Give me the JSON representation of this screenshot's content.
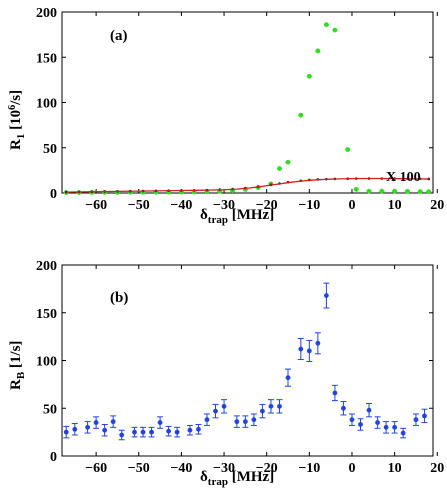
{
  "chart_data": [
    {
      "type": "scatter",
      "panel_label": "(a)",
      "xlabel": "δ",
      "xlabel_sub": "trap",
      "xlabel_unit": " [MHz]",
      "ylabel": "R",
      "ylabel_sub": "1",
      "ylabel_unit": " [10",
      "ylabel_sup": "6",
      "ylabel_end": "/s]",
      "xlim": [
        -68,
        19
      ],
      "ylim": [
        0,
        200
      ],
      "xticks": [
        -60,
        -50,
        -40,
        -30,
        -20,
        -10,
        0,
        10,
        20
      ],
      "yticks": [
        0,
        50,
        100,
        150,
        200
      ],
      "xtick_labels": [
        "−60",
        "−50",
        "−40",
        "−30",
        "−20",
        "−10",
        "0",
        "10",
        "20"
      ],
      "ytick_labels": [
        "0",
        "50",
        "100",
        "150",
        "200"
      ],
      "annotation": "X 100",
      "grid": false,
      "series": [
        {
          "color": "#33dd22",
          "marker": "circle",
          "x": [
            -67,
            -64,
            -61,
            -58,
            -55,
            -52,
            -49,
            -46,
            -43,
            -40,
            -37,
            -34,
            -31,
            -28,
            -25,
            -22,
            -19,
            -17,
            -15,
            -12,
            -10,
            -8,
            -6,
            -4,
            -1,
            1,
            4,
            7,
            10,
            13,
            16,
            18
          ],
          "y": [
            0.5,
            0.5,
            0.6,
            0.6,
            0.7,
            0.8,
            0.8,
            0.9,
            1,
            1,
            1.2,
            1.4,
            1.8,
            2.5,
            4,
            6,
            10,
            27,
            34,
            86,
            129,
            157,
            186,
            180,
            48,
            4,
            2,
            2,
            2,
            1.8,
            1.6,
            1.5
          ],
          "xerr": 0.6
        },
        {
          "color": "#222222",
          "marker": "dot",
          "x": [
            -67,
            -64,
            -61,
            -58,
            -55,
            -52,
            -49,
            -46,
            -43,
            -40,
            -37,
            -34,
            -31,
            -28,
            -25,
            -22,
            -19,
            -17,
            -15,
            -12,
            -10,
            -8,
            -6,
            -4,
            -1,
            1,
            4,
            7,
            10,
            13,
            16,
            18
          ],
          "y": [
            1,
            1.2,
            1.4,
            1.6,
            1.8,
            2,
            2.2,
            2.4,
            2.6,
            2.8,
            3,
            3.3,
            3.8,
            4.3,
            5.5,
            7,
            9,
            10.5,
            12,
            13.5,
            14.5,
            15,
            15.3,
            15.6,
            15.8,
            16,
            16,
            16,
            15.9,
            15.8,
            15.7,
            15.5
          ]
        },
        {
          "color": "#cc2222",
          "marker": "line",
          "x": [
            -67,
            -60,
            -50,
            -40,
            -35,
            -30,
            -27,
            -24,
            -21,
            -18,
            -15,
            -12,
            -9,
            -6,
            -3,
            0,
            3,
            6,
            9,
            12,
            15,
            18
          ],
          "y": [
            1.0,
            1.5,
            2.1,
            2.8,
            3.1,
            3.6,
            4.3,
            5.5,
            7.3,
            9.4,
            11.4,
            13.1,
            14.3,
            15.1,
            15.6,
            15.9,
            16,
            16,
            15.9,
            15.8,
            15.6,
            15.4
          ]
        }
      ]
    },
    {
      "type": "scatter",
      "panel_label": "(b)",
      "xlabel": "δ",
      "xlabel_sub": "trap",
      "xlabel_unit": " [MHz]",
      "ylabel": "R",
      "ylabel_sub": "B",
      "ylabel_unit": " [1/s]",
      "xlim": [
        -68,
        19
      ],
      "ylim": [
        0,
        200
      ],
      "xticks": [
        -60,
        -50,
        -40,
        -30,
        -20,
        -10,
        0,
        10,
        20
      ],
      "yticks": [
        0,
        50,
        100,
        150,
        200
      ],
      "xtick_labels": [
        "−60",
        "−50",
        "−40",
        "−30",
        "−20",
        "−10",
        "0",
        "10",
        "20"
      ],
      "ytick_labels": [
        "0",
        "50",
        "100",
        "150",
        "200"
      ],
      "grid": false,
      "series": [
        {
          "color": "#2244dd",
          "marker": "circle",
          "x": [
            -67,
            -65,
            -62,
            -60,
            -58,
            -56,
            -54,
            -51,
            -49,
            -47,
            -45,
            -43,
            -41,
            -38,
            -36,
            -34,
            -32,
            -30,
            -27,
            -25,
            -23,
            -21,
            -19,
            -17,
            -15,
            -12,
            -10,
            -8,
            -6,
            -4,
            -2,
            0,
            2,
            4,
            6,
            8,
            10,
            12,
            15,
            17
          ],
          "y": [
            25,
            28,
            30,
            35,
            27,
            36,
            22,
            25,
            25,
            25,
            35,
            26,
            25,
            27,
            28,
            38,
            47,
            52,
            36,
            36,
            38,
            47,
            52,
            52,
            82,
            112,
            110,
            118,
            168,
            66,
            50,
            38,
            33,
            48,
            35,
            30,
            30,
            24,
            38,
            42
          ],
          "yerr": [
            6,
            6,
            6,
            6,
            6,
            6,
            5,
            5,
            5,
            5,
            6,
            5,
            5,
            5,
            5,
            6,
            7,
            7,
            6,
            6,
            6,
            7,
            7,
            7,
            9,
            11,
            11,
            11,
            13,
            8,
            7,
            6,
            6,
            7,
            6,
            6,
            6,
            5,
            6,
            7
          ]
        }
      ]
    }
  ]
}
